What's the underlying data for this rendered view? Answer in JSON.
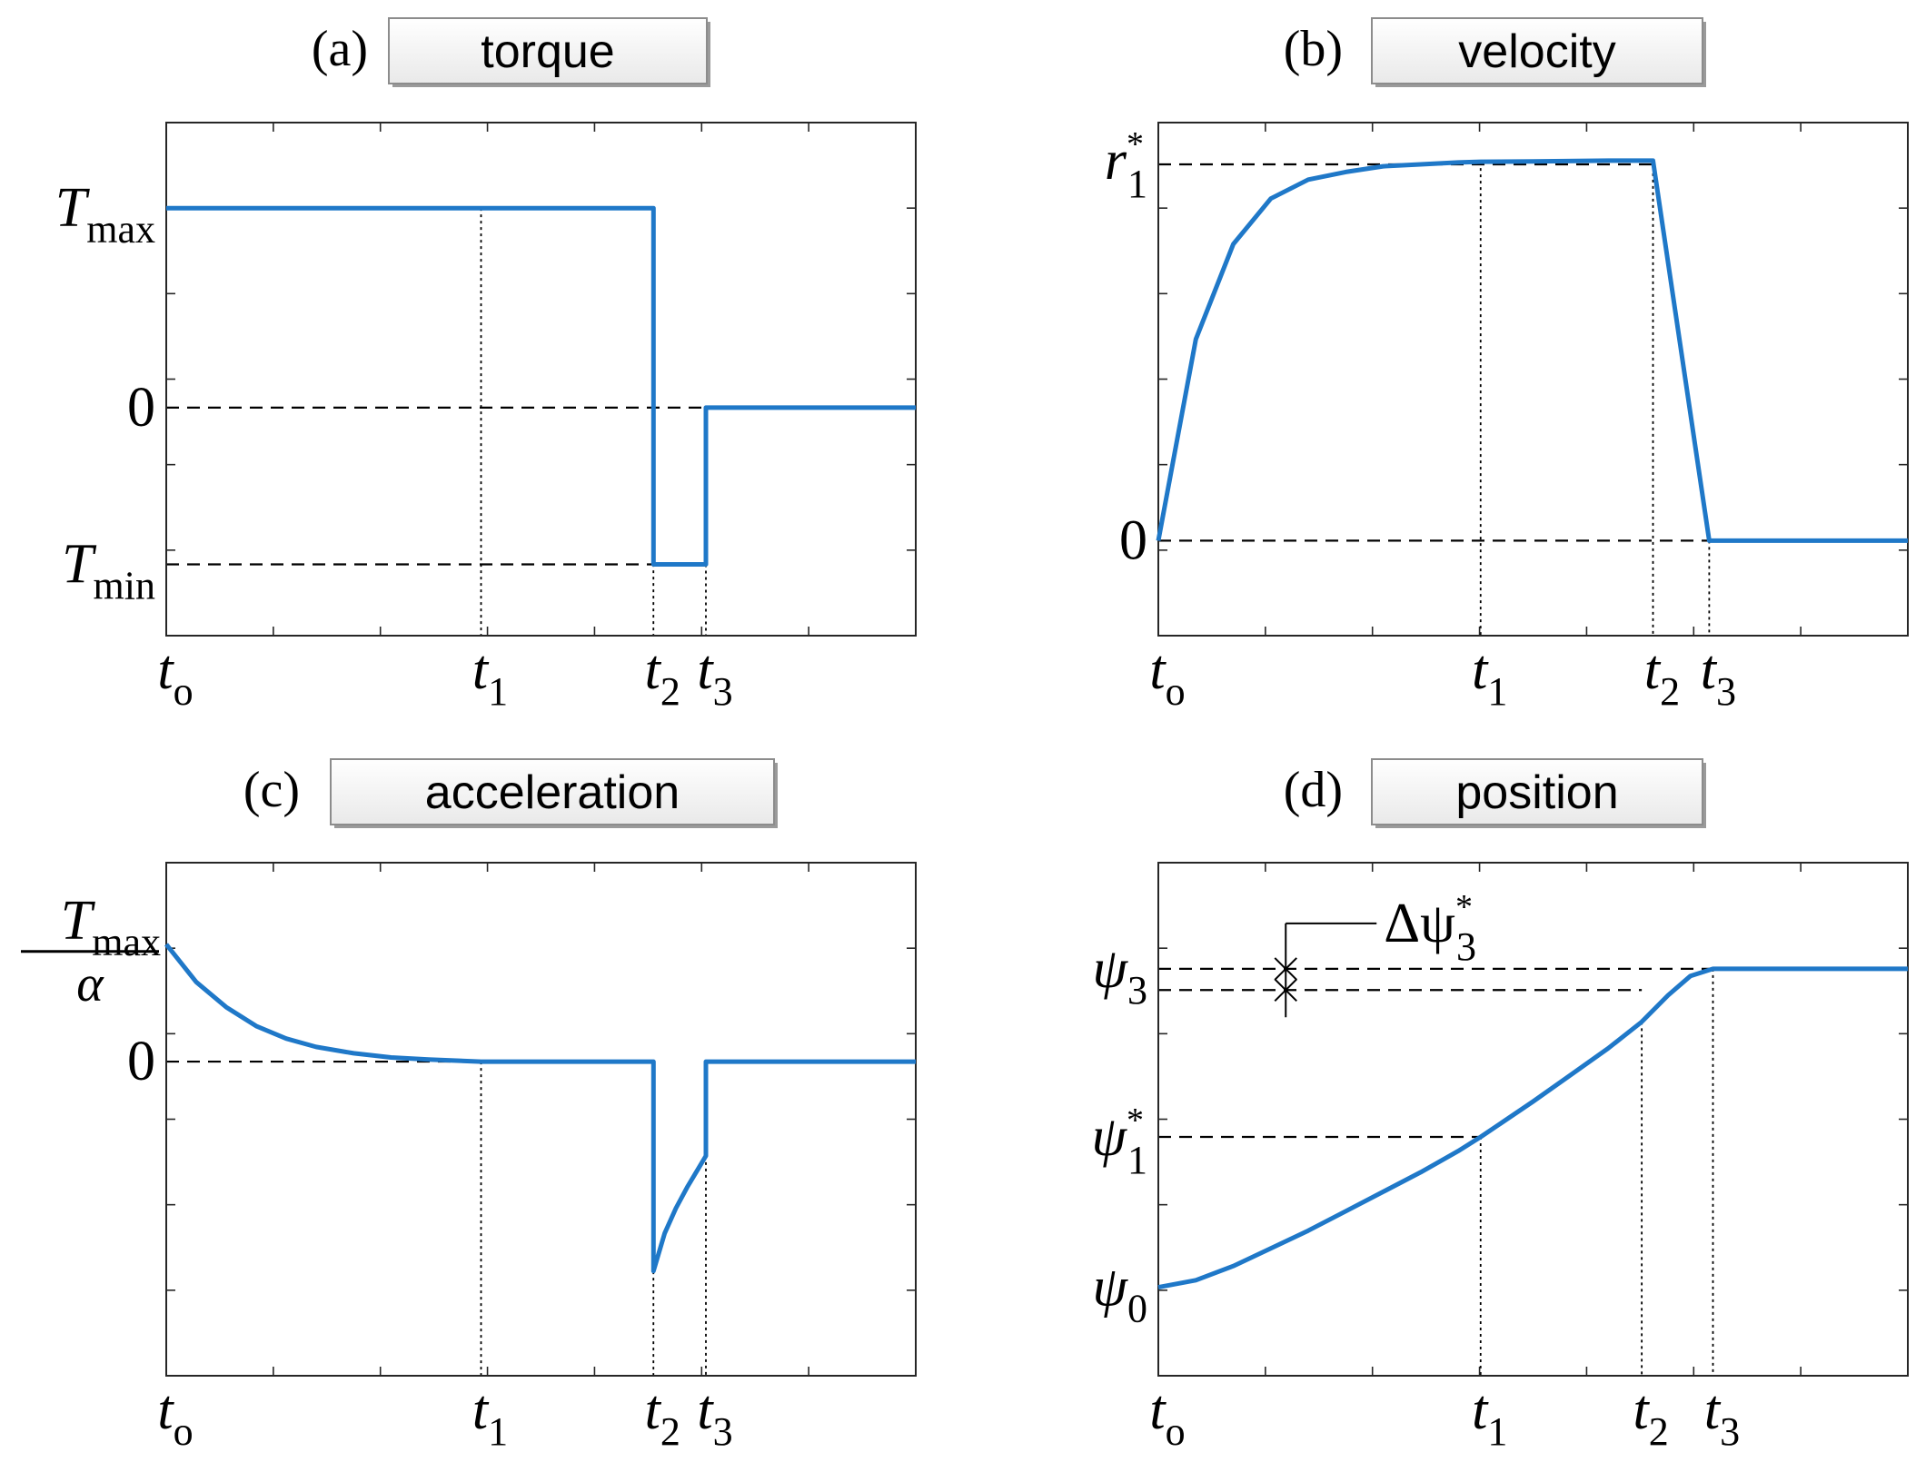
{
  "chart_data": [
    {
      "id": "a",
      "type": "line",
      "panel_label": "(a)",
      "title": "torque",
      "xlim": [
        0,
        10
      ],
      "ylim": [
        -1.6,
        2
      ],
      "x_ticks": [
        {
          "value": 0,
          "main": "t",
          "sub": "o"
        },
        {
          "value": 4.2,
          "main": "t",
          "sub": "1"
        },
        {
          "value": 6.5,
          "main": "t",
          "sub": "2"
        },
        {
          "value": 7.2,
          "main": "t",
          "sub": "3"
        }
      ],
      "y_ticks": [
        {
          "value": 1.4,
          "main": "T",
          "sub": "max"
        },
        {
          "value": 0,
          "main": "0"
        },
        {
          "value": -1.1,
          "main": "T",
          "sub": "min"
        }
      ],
      "guides_h": [
        {
          "y": 1.4,
          "x_from": 0,
          "x_to": 4.2
        },
        {
          "y": 0,
          "x_from": 0,
          "x_to": 7.2
        },
        {
          "y": -1.1,
          "x_from": 0,
          "x_to": 6.5
        }
      ],
      "guides_v": [
        4.2,
        6.5,
        7.2
      ],
      "series": [
        {
          "x": [
            0,
            6.5,
            6.5,
            7.2,
            7.2,
            10
          ],
          "y": [
            1.4,
            1.4,
            -1.1,
            -1.1,
            0,
            0
          ]
        }
      ]
    },
    {
      "id": "b",
      "type": "line",
      "panel_label": "(b)",
      "title": "velocity",
      "xlim": [
        0,
        10
      ],
      "ylim": [
        -0.25,
        1.1
      ],
      "x_ticks": [
        {
          "value": 0,
          "main": "t",
          "sub": "o"
        },
        {
          "value": 4.3,
          "main": "t",
          "sub": "1"
        },
        {
          "value": 6.6,
          "main": "t",
          "sub": "2"
        },
        {
          "value": 7.35,
          "main": "t",
          "sub": "3"
        }
      ],
      "y_ticks": [
        {
          "value": 1,
          "main": "r",
          "sub": "1",
          "sup": "*"
        },
        {
          "value": 0,
          "main": "0"
        }
      ],
      "guides_h": [
        {
          "y": 0.99,
          "x_from": 0,
          "x_to": 6.6
        },
        {
          "y": 0,
          "x_from": 0,
          "x_to": 7.35
        }
      ],
      "guides_v": [
        4.3,
        6.6,
        7.35
      ],
      "series": [
        {
          "x": [
            0,
            0.5,
            1,
            1.5,
            2,
            2.5,
            3,
            3.5,
            4,
            4.3,
            5,
            6,
            6.6,
            7.35,
            10
          ],
          "y": [
            0,
            0.53,
            0.78,
            0.9,
            0.95,
            0.97,
            0.985,
            0.99,
            0.995,
            0.997,
            0.998,
            1.0,
            1.0,
            0,
            0
          ]
        }
      ]
    },
    {
      "id": "c",
      "type": "line",
      "panel_label": "(c)",
      "title": "acceleration",
      "xlim": [
        0,
        10
      ],
      "ylim": [
        -1.5,
        0.95
      ],
      "x_ticks": [
        {
          "value": 0,
          "main": "t",
          "sub": "o"
        },
        {
          "value": 4.2,
          "main": "t",
          "sub": "1"
        },
        {
          "value": 6.5,
          "main": "t",
          "sub": "2"
        },
        {
          "value": 7.2,
          "main": "t",
          "sub": "3"
        }
      ],
      "y_ticks": [
        {
          "value": 0.5,
          "main": "T",
          "sub": "max",
          "denominator": "α"
        },
        {
          "value": 0,
          "main": "0"
        }
      ],
      "guides_h": [
        {
          "y": 0,
          "x_from": 0,
          "x_to": 4.2
        }
      ],
      "guides_v": [
        4.2,
        6.5,
        7.2
      ],
      "series": [
        {
          "x": [
            0,
            0.4,
            0.8,
            1.2,
            1.6,
            2.0,
            2.5,
            3.0,
            3.5,
            4.2,
            6.5,
            6.5,
            6.65,
            6.8,
            6.95,
            7.1,
            7.2,
            7.2,
            10
          ],
          "y": [
            0.56,
            0.38,
            0.26,
            0.17,
            0.11,
            0.07,
            0.04,
            0.02,
            0.01,
            0,
            0,
            -1.0,
            -0.82,
            -0.7,
            -0.6,
            -0.51,
            -0.45,
            0,
            0
          ]
        }
      ]
    },
    {
      "id": "d",
      "type": "line",
      "panel_label": "(d)",
      "title": "position",
      "xlim": [
        0,
        10
      ],
      "ylim": [
        -0.5,
        2.4
      ],
      "x_ticks": [
        {
          "value": 0,
          "main": "t",
          "sub": "o"
        },
        {
          "value": 4.3,
          "main": "t",
          "sub": "1"
        },
        {
          "value": 6.45,
          "main": "t",
          "sub": "2"
        },
        {
          "value": 7.4,
          "main": "t",
          "sub": "3"
        }
      ],
      "y_ticks": [
        {
          "value": 1.8,
          "main": "ψ",
          "sub": "3"
        },
        {
          "value": 0.85,
          "main": "ψ",
          "sub": "1",
          "sup": "*"
        },
        {
          "value": 0,
          "main": "ψ",
          "sub": "0"
        }
      ],
      "guides_h": [
        {
          "y": 1.8,
          "x_from": 0,
          "x_to": 7.4
        },
        {
          "y": 1.68,
          "x_from": 0,
          "x_to": 6.45
        },
        {
          "y": 0.85,
          "x_from": 0,
          "x_to": 4.3
        }
      ],
      "guides_v": [
        4.3,
        6.45,
        7.4
      ],
      "annotation": {
        "main": "Δψ",
        "sub": "3",
        "sup": "*",
        "x": 1.7,
        "y_top": 1.8,
        "y_bottom": 1.68
      },
      "series": [
        {
          "x": [
            0,
            0.5,
            1,
            1.5,
            2,
            2.5,
            3,
            3.5,
            4,
            4.3,
            5,
            5.5,
            6,
            6.45,
            6.8,
            7.1,
            7.4,
            10
          ],
          "y": [
            0,
            0.04,
            0.12,
            0.22,
            0.32,
            0.43,
            0.54,
            0.65,
            0.77,
            0.85,
            1.05,
            1.2,
            1.35,
            1.5,
            1.65,
            1.76,
            1.8,
            1.8
          ]
        }
      ]
    }
  ]
}
